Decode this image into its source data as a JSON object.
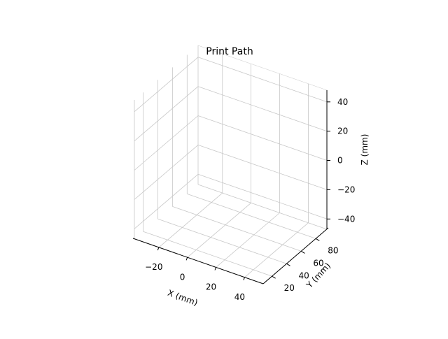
{
  "chart_data": {
    "type": "scatter",
    "projection": "3d",
    "title": "Print Path",
    "xlabel": "X (mm)",
    "ylabel": "Y (mm)",
    "zlabel": "Z (mm)",
    "xticks": [
      -20,
      0,
      20,
      40
    ],
    "yticks": [
      20,
      40,
      60,
      80
    ],
    "zticks": [
      -40,
      -20,
      0,
      20,
      40
    ],
    "xlim": [
      -37,
      53
    ],
    "ylim": [
      8,
      95
    ],
    "zlim": [
      -47,
      48
    ],
    "grid": true,
    "legend": "none",
    "series": [],
    "colors": {
      "grid": "#c8c8c8",
      "axis": "#000000",
      "pane": "#ffffff"
    }
  }
}
